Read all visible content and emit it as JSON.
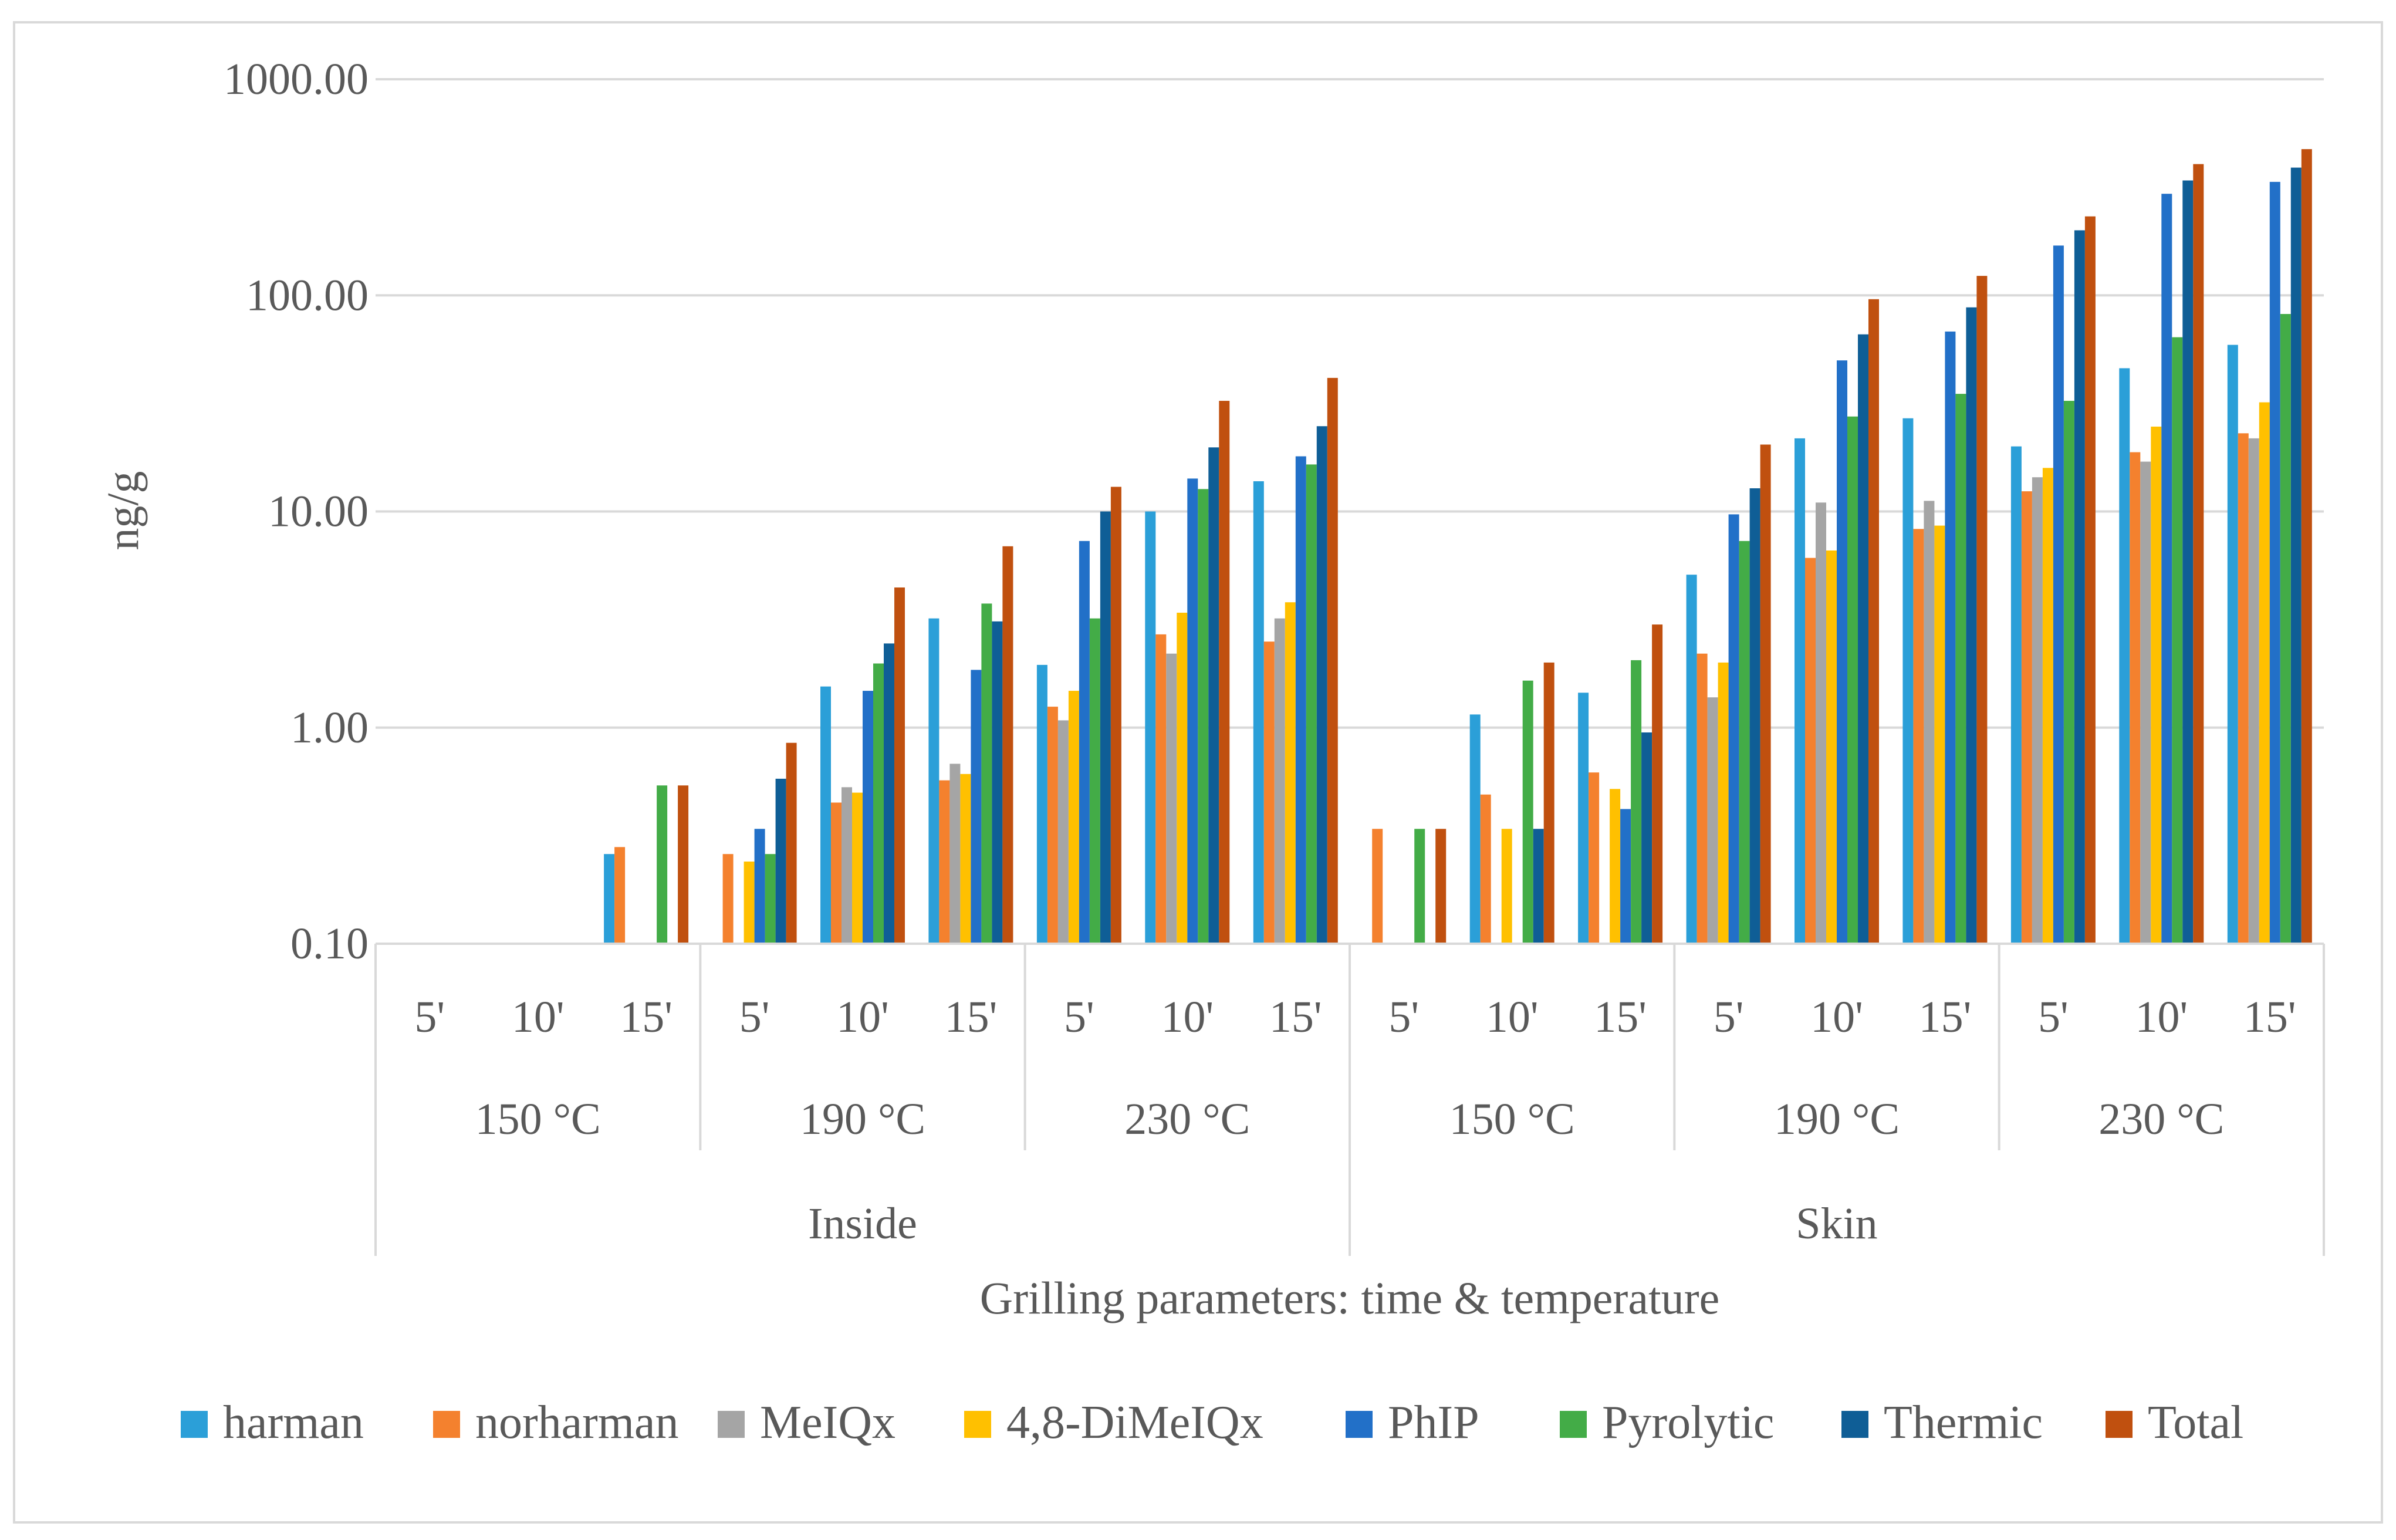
{
  "chart_data": {
    "type": "bar",
    "y_scale": "log",
    "ylabel": "ng/g",
    "xlabel": "Grilling parameters: time & temperature",
    "ylim": [
      0.1,
      1000
    ],
    "y_ticks": [
      0.1,
      1,
      10,
      100,
      1000
    ],
    "y_tick_labels": [
      "0.10",
      "1.00",
      "10.00",
      "100.00",
      "1000.00"
    ],
    "grid": true,
    "legend_position": "bottom",
    "groups": [
      {
        "name": "Inside",
        "temperatures": [
          "150 °C",
          "190 °C",
          "230 °C"
        ]
      },
      {
        "name": "Skin",
        "temperatures": [
          "150 °C",
          "190 °C",
          "230 °C"
        ]
      }
    ],
    "times": [
      "5'",
      "10'",
      "15'"
    ],
    "categories": [
      "Inside 150 °C 5'",
      "Inside 150 °C 10'",
      "Inside 150 °C 15'",
      "Inside 190 °C 5'",
      "Inside 190 °C 10'",
      "Inside 190 °C 15'",
      "Inside 230 °C 5'",
      "Inside 230 °C 10'",
      "Inside 230 °C 15'",
      "Skin 150 °C 5'",
      "Skin 150 °C 10'",
      "Skin 150 °C 15'",
      "Skin 190 °C 5'",
      "Skin 190 °C 10'",
      "Skin 190 °C 15'",
      "Skin 230 °C 5'",
      "Skin 230 °C 10'",
      "Skin 230 °C 15'"
    ],
    "series": [
      {
        "name": "harman",
        "color": "#2B9FD8",
        "values": [
          null,
          null,
          0.26,
          null,
          1.55,
          3.2,
          1.95,
          10.0,
          13.8,
          null,
          1.15,
          1.45,
          5.1,
          21.8,
          27.0,
          20.0,
          46.0,
          59.0
        ]
      },
      {
        "name": "norharman",
        "color": "#F4812E",
        "values": [
          null,
          null,
          0.28,
          0.26,
          0.45,
          0.57,
          1.25,
          2.7,
          2.5,
          0.34,
          0.49,
          0.62,
          2.2,
          6.1,
          8.3,
          12.4,
          18.8,
          23.0
        ]
      },
      {
        "name": "MeIQx",
        "color": "#A5A5A5",
        "values": [
          null,
          null,
          null,
          null,
          0.53,
          0.68,
          1.08,
          2.2,
          3.2,
          null,
          null,
          null,
          1.38,
          11.0,
          11.2,
          14.4,
          17.0,
          21.8
        ]
      },
      {
        "name": "4,8-DiMeIQx",
        "color": "#FFC000",
        "values": [
          null,
          null,
          null,
          0.24,
          0.5,
          0.61,
          1.48,
          3.4,
          3.8,
          null,
          0.34,
          0.52,
          2.0,
          6.6,
          8.6,
          15.9,
          24.7,
          32.0
        ]
      },
      {
        "name": "PhIP",
        "color": "#2270C8",
        "values": [
          null,
          null,
          null,
          0.34,
          1.48,
          1.85,
          7.3,
          14.2,
          18.0,
          null,
          null,
          0.42,
          9.7,
          50.0,
          68.0,
          170.0,
          295.0,
          335.0
        ]
      },
      {
        "name": "Pyrolytic",
        "color": "#43AC47",
        "values": [
          null,
          null,
          0.54,
          0.26,
          1.98,
          3.75,
          3.2,
          12.7,
          16.5,
          0.34,
          1.65,
          2.05,
          7.3,
          27.5,
          35.0,
          32.5,
          64.0,
          82.0
        ]
      },
      {
        "name": "Thermic",
        "color": "#0F5E96",
        "values": [
          null,
          null,
          null,
          0.58,
          2.45,
          3.1,
          10.0,
          19.8,
          24.8,
          null,
          0.34,
          0.95,
          12.8,
          66.0,
          88.0,
          200.0,
          340.0,
          390.0
        ]
      },
      {
        "name": "Total",
        "color": "#C0500F",
        "values": [
          null,
          null,
          0.54,
          0.85,
          4.45,
          6.9,
          13.0,
          32.5,
          41.5,
          0.34,
          2.0,
          3.0,
          20.4,
          96.0,
          123.0,
          232.0,
          405.0,
          475.0
        ]
      }
    ]
  }
}
